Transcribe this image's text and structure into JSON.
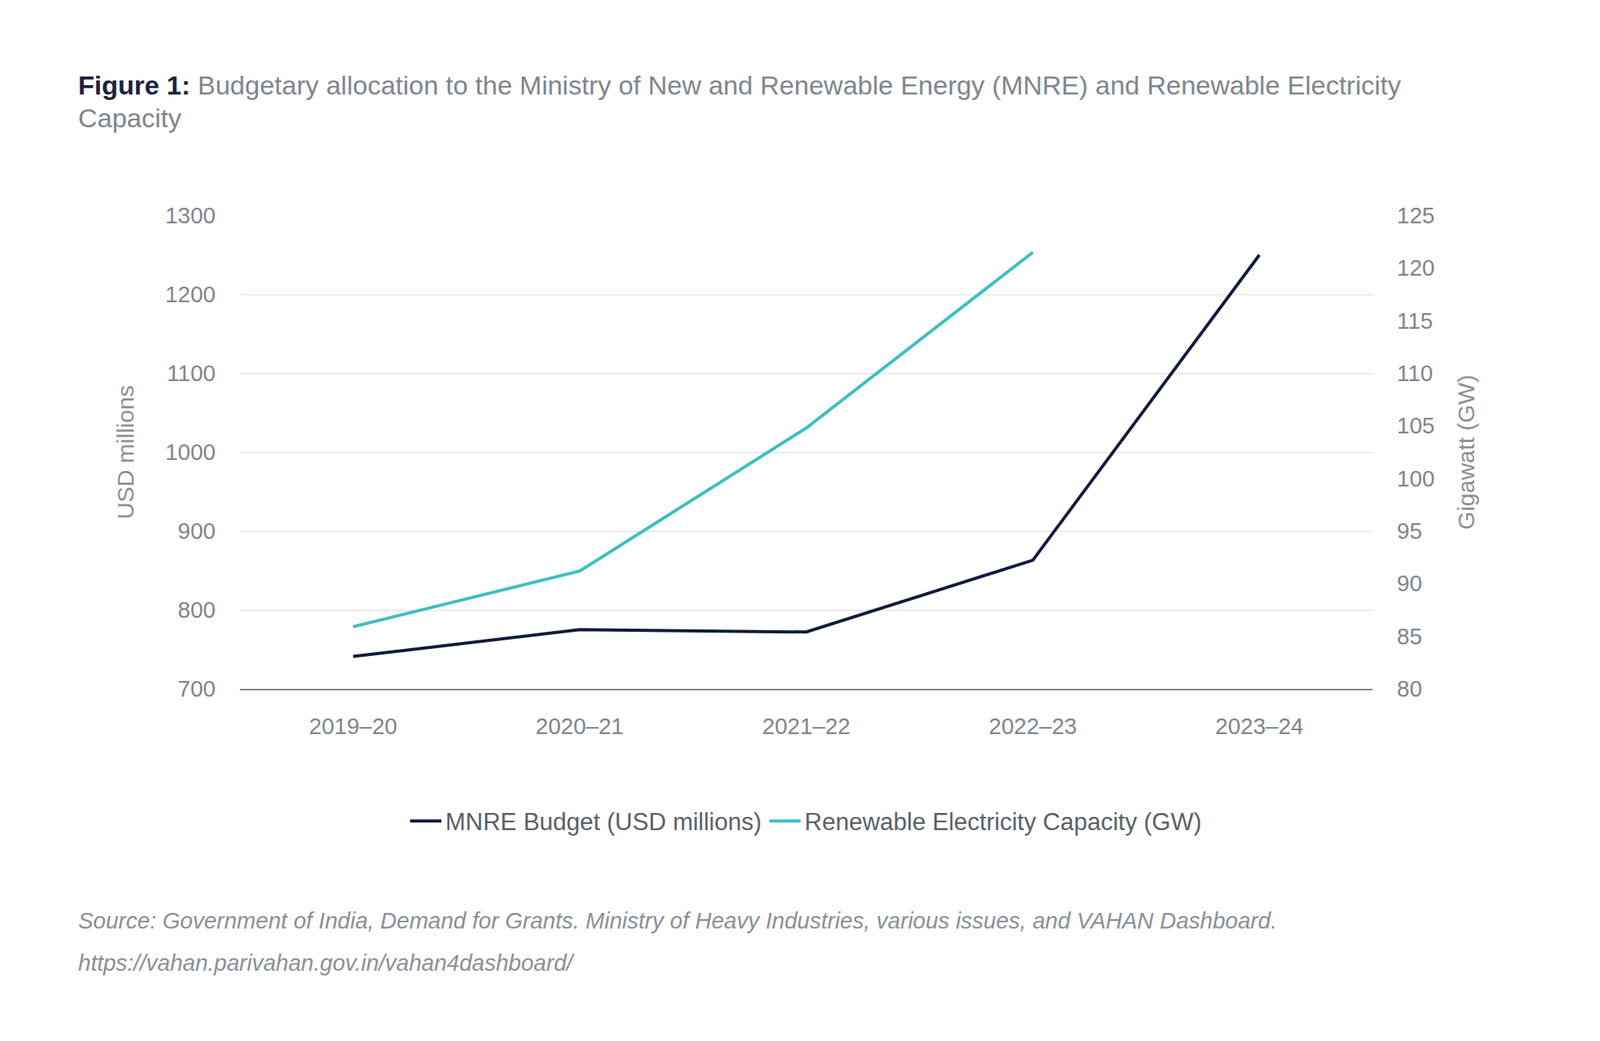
{
  "chart_data": {
    "type": "line",
    "figure_label": "Figure 1:",
    "title": "Budgetary allocation to the Ministry of New and Renewable Energy (MNRE) and Renewable Electricity Capacity",
    "categories": [
      "2019–20",
      "2020–21",
      "2021–22",
      "2022–23",
      "2023–24"
    ],
    "series": [
      {
        "name": "MNRE Budget (USD millions)",
        "color": "#111a3d",
        "values": [
          741,
          775,
          772,
          863,
          1250
        ]
      },
      {
        "name": "Renewable Electricity Capacity (GW)",
        "color": "#3dbfbf",
        "values": [
          85.9,
          91.2,
          104.8,
          121.5,
          null
        ],
        "axis": "y2"
      }
    ],
    "ylabel": "USD millions",
    "y2label": "Gigawatt (GW)",
    "ylim": [
      700,
      1300
    ],
    "yticks": [
      700,
      800,
      900,
      1000,
      1100,
      1200,
      1300
    ],
    "y2lim": [
      80,
      125
    ],
    "y2ticks": [
      80,
      85,
      90,
      95,
      100,
      105,
      110,
      115,
      120,
      125
    ],
    "grid": true,
    "legend": "bottom",
    "source": [
      "Source: Government of India, Demand for Grants. Ministry of Heavy Industries, various issues, and VAHAN Dashboard.",
      "https://vahan.parivahan.gov.in/vahan4dashboard/"
    ]
  }
}
